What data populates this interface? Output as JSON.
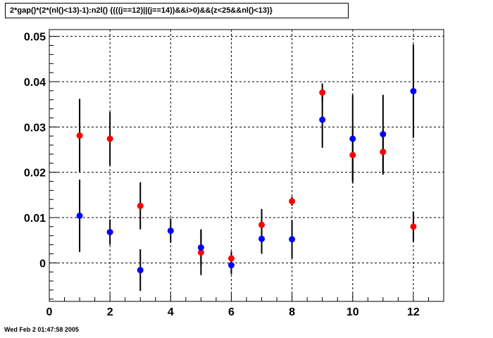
{
  "chart_data": {
    "type": "scatter",
    "title": "2*gap()*(2*(nl()<13)-1):n2l() {(((j==12)||(j==14))&&i>0)&&(z<25&&nl()<13)}",
    "xlabel": "",
    "ylabel": "",
    "xlim": [
      0,
      13
    ],
    "ylim": [
      -0.0085,
      0.0515
    ],
    "x_ticks": [
      0,
      2,
      4,
      6,
      8,
      10,
      12
    ],
    "x_tick_labels": [
      "0",
      "2",
      "4",
      "6",
      "8",
      "10",
      "12"
    ],
    "y_ticks": [
      0,
      0.01,
      0.02,
      0.03,
      0.04,
      0.05
    ],
    "y_tick_labels": [
      "0",
      "0.01",
      "0.02",
      "0.03",
      "0.04",
      "0.05"
    ],
    "grid": true,
    "series": [
      {
        "color": "#ff0000",
        "points": [
          {
            "x": 1,
            "y": 0.0281,
            "err": 0.0081
          },
          {
            "x": 2,
            "y": 0.0274,
            "err": 0.0059
          },
          {
            "x": 3,
            "y": 0.0126,
            "err": 0.0052
          },
          {
            "x": 5,
            "y": 0.0023,
            "err": 0.005
          },
          {
            "x": 6,
            "y": 0.001,
            "err": 0.0015
          },
          {
            "x": 7,
            "y": 0.0084,
            "err": 0.0035
          },
          {
            "x": 8,
            "y": 0.0136,
            "err": 0.001
          },
          {
            "x": 9,
            "y": 0.0376,
            "err": 0.002
          },
          {
            "x": 10,
            "y": 0.0238,
            "err": 0.0057
          },
          {
            "x": 11,
            "y": 0.0245,
            "err": 0.005
          },
          {
            "x": 12,
            "y": 0.008,
            "err": 0.0033
          }
        ]
      },
      {
        "color": "#0000ff",
        "points": [
          {
            "x": 1,
            "y": 0.0104,
            "err": 0.008
          },
          {
            "x": 2,
            "y": 0.0068,
            "err": 0.0028
          },
          {
            "x": 3,
            "y": -0.0016,
            "err": 0.0046
          },
          {
            "x": 4,
            "y": 0.0071,
            "err": 0.0027
          },
          {
            "x": 5,
            "y": 0.0034,
            "err": 0.004
          },
          {
            "x": 6,
            "y": -0.0005,
            "err": 0.002
          },
          {
            "x": 7,
            "y": 0.0053,
            "err": 0.0033
          },
          {
            "x": 8,
            "y": 0.0052,
            "err": 0.0042
          },
          {
            "x": 9,
            "y": 0.0316,
            "err": 0.0062
          },
          {
            "x": 10,
            "y": 0.0274,
            "err": 0.0097
          },
          {
            "x": 11,
            "y": 0.0284,
            "err": 0.0087
          },
          {
            "x": 12,
            "y": 0.0379,
            "err": 0.0103
          }
        ]
      }
    ]
  },
  "footer": {
    "timestamp": "Wed Feb  2 01:47:58 2005"
  }
}
